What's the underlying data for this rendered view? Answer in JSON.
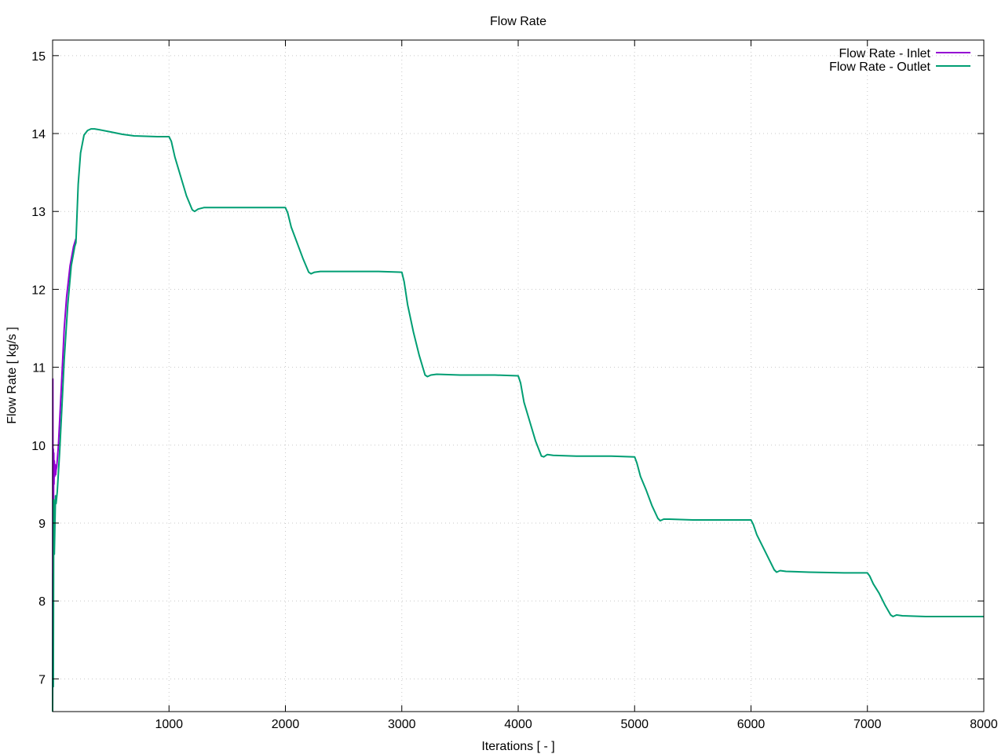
{
  "chart_data": {
    "type": "line",
    "title": "Flow Rate",
    "xlabel": "Iterations [ - ]",
    "ylabel": "Flow Rate [ kg/s ]",
    "xlim": [
      0,
      8000
    ],
    "ylim": [
      6.58,
      15.2
    ],
    "xticks": [
      1000,
      2000,
      3000,
      4000,
      5000,
      6000,
      7000,
      8000
    ],
    "yticks": [
      7,
      8,
      9,
      10,
      11,
      12,
      13,
      14,
      15
    ],
    "grid": true,
    "legend_position": "top-right",
    "series": [
      {
        "name": "Flow Rate - Inlet",
        "color": "#9400d3",
        "x": [
          0,
          2,
          4,
          6,
          8,
          10,
          12,
          15,
          18,
          22,
          26,
          30,
          35,
          40,
          50,
          60,
          80,
          100,
          120,
          150,
          180,
          200
        ],
        "y": [
          6.58,
          10.85,
          8.9,
          9.95,
          9.3,
          9.9,
          9.5,
          9.8,
          9.6,
          9.75,
          9.62,
          9.68,
          9.72,
          9.8,
          10.0,
          10.3,
          10.9,
          11.5,
          11.9,
          12.3,
          12.55,
          12.65
        ]
      },
      {
        "name": "Flow Rate - Outlet",
        "color": "#009e73",
        "x": [
          0,
          3,
          6,
          10,
          15,
          20,
          25,
          30,
          40,
          60,
          80,
          100,
          130,
          160,
          190,
          200,
          220,
          240,
          270,
          300,
          330,
          360,
          400,
          500,
          600,
          700,
          800,
          900,
          1000,
          1020,
          1050,
          1100,
          1150,
          1200,
          1220,
          1250,
          1300,
          1500,
          1800,
          2000,
          2020,
          2050,
          2100,
          2150,
          2200,
          2220,
          2250,
          2300,
          2500,
          2800,
          3000,
          3020,
          3050,
          3100,
          3150,
          3200,
          3220,
          3250,
          3300,
          3500,
          3800,
          4000,
          4020,
          4050,
          4100,
          4150,
          4200,
          4220,
          4250,
          4300,
          4500,
          4800,
          5000,
          5020,
          5050,
          5100,
          5150,
          5200,
          5220,
          5250,
          5300,
          5500,
          5800,
          6000,
          6020,
          6050,
          6100,
          6150,
          6200,
          6220,
          6250,
          6300,
          6500,
          6800,
          7000,
          7020,
          7050,
          7100,
          7150,
          7200,
          7220,
          7250,
          7300,
          7500,
          7800,
          8000
        ],
        "y": [
          6.58,
          8.35,
          6.9,
          9.3,
          8.6,
          9.0,
          9.35,
          9.25,
          9.4,
          9.9,
          10.5,
          11.1,
          11.8,
          12.3,
          12.55,
          12.6,
          13.35,
          13.75,
          13.98,
          14.04,
          14.06,
          14.06,
          14.05,
          14.02,
          13.99,
          13.97,
          13.965,
          13.96,
          13.96,
          13.9,
          13.7,
          13.45,
          13.2,
          13.02,
          13.0,
          13.03,
          13.05,
          13.05,
          13.05,
          13.05,
          12.98,
          12.8,
          12.6,
          12.4,
          12.22,
          12.2,
          12.22,
          12.23,
          12.23,
          12.23,
          12.22,
          12.1,
          11.8,
          11.45,
          11.15,
          10.9,
          10.88,
          10.9,
          10.91,
          10.9,
          10.9,
          10.89,
          10.8,
          10.55,
          10.3,
          10.05,
          9.86,
          9.85,
          9.88,
          9.87,
          9.86,
          9.86,
          9.85,
          9.77,
          9.6,
          9.42,
          9.22,
          9.06,
          9.03,
          9.05,
          9.05,
          9.04,
          9.04,
          9.04,
          8.98,
          8.85,
          8.7,
          8.55,
          8.4,
          8.37,
          8.39,
          8.38,
          8.37,
          8.36,
          8.36,
          8.32,
          8.22,
          8.1,
          7.95,
          7.82,
          7.8,
          7.82,
          7.81,
          7.8,
          7.8,
          7.8
        ]
      }
    ]
  }
}
